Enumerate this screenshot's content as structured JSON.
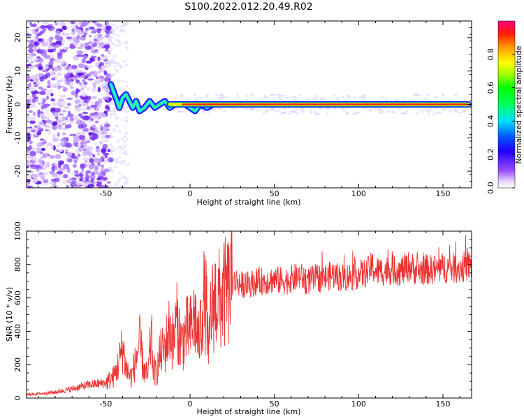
{
  "figure": {
    "title": "S100.2022.012.20.49.R02"
  },
  "chart_data": [
    {
      "type": "heatmap",
      "xlabel": "Height of straight line (km)",
      "ylabel": "Frequency (Hz)",
      "xlim": [
        -97,
        167
      ],
      "ylim": [
        -25,
        25
      ],
      "xticks": [
        -50,
        0,
        50,
        100,
        150
      ],
      "yticks": [
        -20,
        -10,
        0,
        10,
        20
      ],
      "colorbar": {
        "label": "Normalized spectral amplitude",
        "range": [
          0,
          1
        ],
        "ticks": [
          0.0,
          0.2,
          0.4,
          0.6,
          0.8
        ],
        "colormap": "rainbow (white/violet → blue → cyan → green → yellow → red → magenta)"
      },
      "features": [
        {
          "region": "x < -48 km",
          "description": "broadband noise, low-amplitude violet speckle across all frequencies"
        },
        {
          "region": "-48 to -10 km",
          "description": "wandering narrow spectral line near 0 Hz (about -6 to +6 Hz), mid amplitude"
        },
        {
          "region": "0 to 165 km",
          "description": "stable carrier line at 0 Hz, high normalized amplitude (about 0.9)"
        }
      ],
      "track": {
        "x": [
          -47,
          -44,
          -42,
          -40,
          -38,
          -36,
          -34,
          -32,
          -30,
          -27,
          -24,
          -21,
          -18,
          -15,
          -12,
          -9,
          -6,
          -3,
          0,
          3,
          6,
          10,
          14
        ],
        "y": [
          6,
          2,
          -1,
          2,
          3,
          1,
          -1,
          1,
          -2,
          -1,
          1,
          -1,
          0,
          1,
          -1,
          0,
          0,
          0,
          -1,
          -2,
          0,
          -1,
          0
        ]
      },
      "carrier": {
        "x_range": [
          -12,
          165
        ],
        "y": 0
      }
    },
    {
      "type": "line",
      "xlabel": "Height of straight line (km)",
      "ylabel": "SNR (10 * v/v)",
      "xlim": [
        -97,
        167
      ],
      "ylim": [
        0,
        1000
      ],
      "xticks": [
        -50,
        0,
        50,
        100,
        150
      ],
      "yticks": [
        0,
        200,
        400,
        600,
        800,
        1000
      ],
      "color": "#ee3333",
      "series": [
        {
          "x": [
            -97,
            -90,
            -80,
            -70,
            -60,
            -50,
            -45,
            -42,
            -40,
            -38,
            -35,
            -32,
            -30,
            -27,
            -25,
            -23,
            -22,
            -20,
            -18,
            -15,
            -12,
            -10,
            -8,
            -5,
            -2,
            0,
            3,
            5,
            8,
            10,
            11,
            12,
            15,
            18,
            20,
            23,
            25,
            28,
            30,
            35,
            40,
            45,
            50,
            55,
            60,
            65,
            70,
            75,
            80,
            85,
            90,
            95,
            100,
            105,
            108,
            110,
            115,
            120,
            125,
            130,
            135,
            140,
            145,
            150,
            155,
            160,
            165
          ],
          "y": [
            20,
            25,
            35,
            55,
            80,
            90,
            130,
            220,
            310,
            180,
            120,
            230,
            330,
            160,
            130,
            380,
            190,
            140,
            260,
            300,
            420,
            330,
            460,
            330,
            400,
            400,
            490,
            320,
            600,
            520,
            200,
            500,
            600,
            580,
            620,
            640,
            690,
            700,
            680,
            680,
            700,
            700,
            710,
            700,
            710,
            730,
            700,
            720,
            720,
            740,
            720,
            730,
            740,
            750,
            790,
            760,
            760,
            770,
            760,
            790,
            760,
            770,
            770,
            780,
            780,
            780,
            790
          ]
        }
      ]
    }
  ]
}
